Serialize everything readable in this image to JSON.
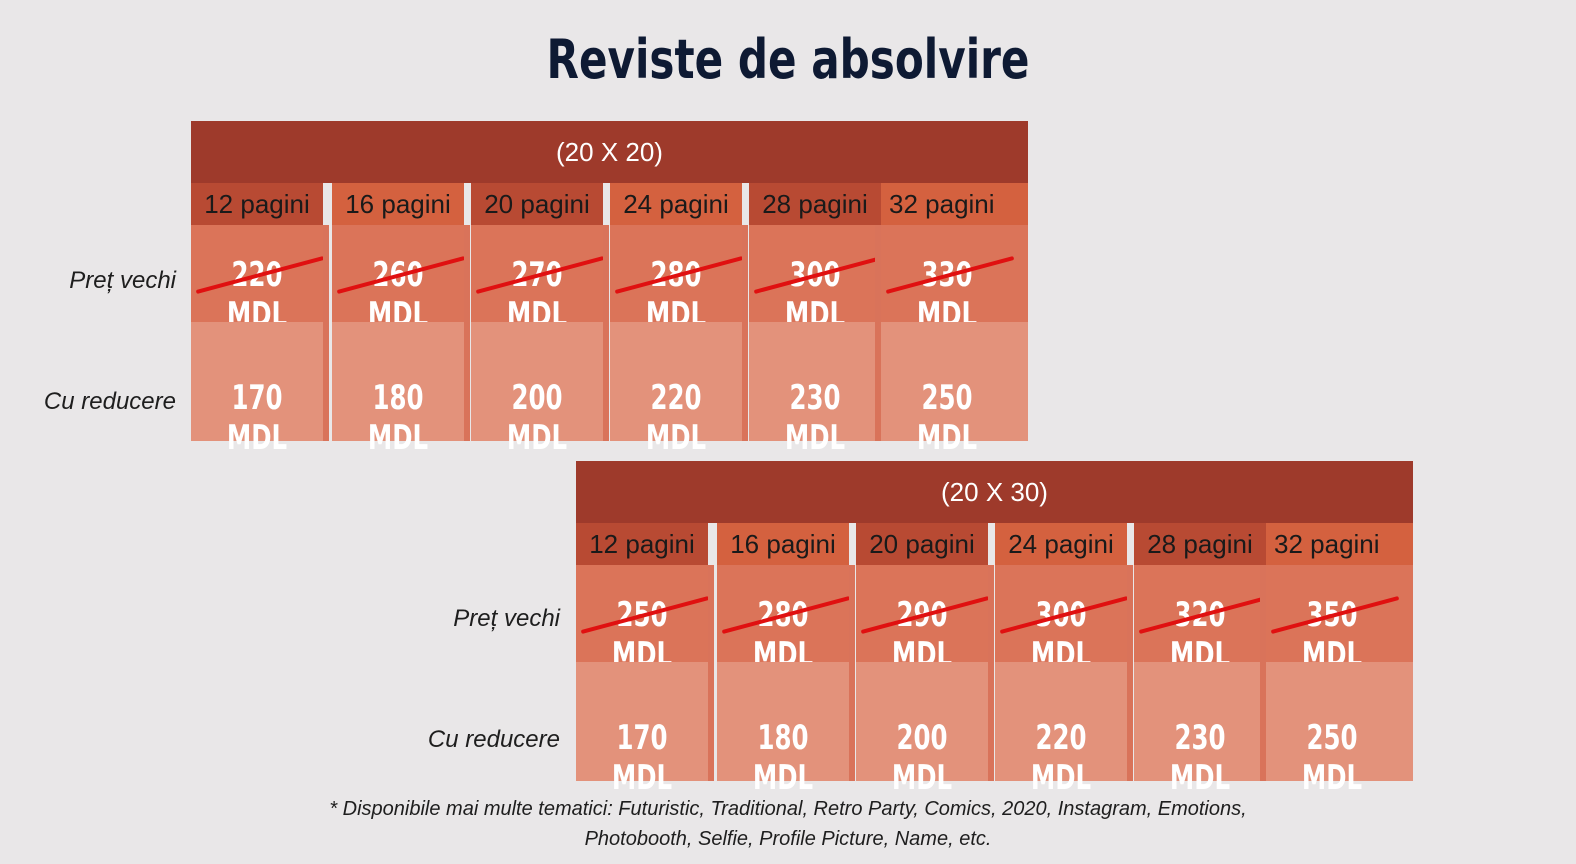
{
  "title": "Reviste de absolvire",
  "row_labels": {
    "old": "Preț vechi",
    "new": "Cu reducere"
  },
  "tables": [
    {
      "size": "(20 X 20)",
      "columns": [
        {
          "pages": "12 pagini",
          "old": "220 MDL",
          "new": "170 MDL"
        },
        {
          "pages": "16 pagini",
          "old": "260 MDL",
          "new": "180 MDL"
        },
        {
          "pages": "20 pagini",
          "old": "270 MDL",
          "new": "200 MDL"
        },
        {
          "pages": "24 pagini",
          "old": "280 MDL",
          "new": "220 MDL"
        },
        {
          "pages": "28 pagini",
          "old": "300 MDL",
          "new": "230 MDL"
        },
        {
          "pages": "32 pagini",
          "old": "330 MDL",
          "new": "250 MDL"
        }
      ]
    },
    {
      "size": "(20 X 30)",
      "columns": [
        {
          "pages": "12 pagini",
          "old": "250 MDL",
          "new": "170 MDL"
        },
        {
          "pages": "16 pagini",
          "old": "280 MDL",
          "new": "180 MDL"
        },
        {
          "pages": "20 pagini",
          "old": "290 MDL",
          "new": "200 MDL"
        },
        {
          "pages": "24 pagini",
          "old": "300 MDL",
          "new": "220 MDL"
        },
        {
          "pages": "28 pagini",
          "old": "320 MDL",
          "new": "230 MDL"
        },
        {
          "pages": "32 pagini",
          "old": "350 MDL",
          "new": "250 MDL"
        }
      ]
    }
  ],
  "footnote": {
    "line1": "* Disponibile mai multe tematici: Futuristic, Traditional, Retro Party, Comics, 2020, Instagram, Emotions,",
    "line2": "Photobooth, Selfie, Profile Picture, Name, etc."
  },
  "colors": {
    "header": "#9e3a2b",
    "old_price_bg": "#db7459",
    "new_price_bg": "#e3927b",
    "strike": "#e01010",
    "title": "#0e1a33"
  }
}
